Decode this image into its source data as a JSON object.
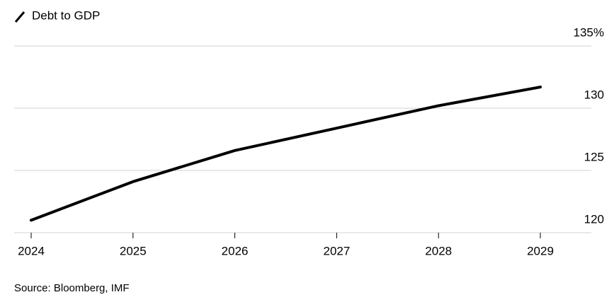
{
  "chart_data": {
    "type": "line",
    "categories": [
      "2024",
      "2025",
      "2026",
      "2027",
      "2028",
      "2029"
    ],
    "series": [
      {
        "name": "Debt to GDP",
        "color": "#000000",
        "values": [
          121.0,
          124.1,
          126.6,
          128.4,
          130.2,
          131.7
        ]
      }
    ],
    "ylim": [
      120,
      135
    ],
    "yticks": [
      120,
      125,
      130,
      {
        "value": 135,
        "label": "135%"
      }
    ],
    "grid": true,
    "source": "Source: Bloomberg, IMF"
  }
}
